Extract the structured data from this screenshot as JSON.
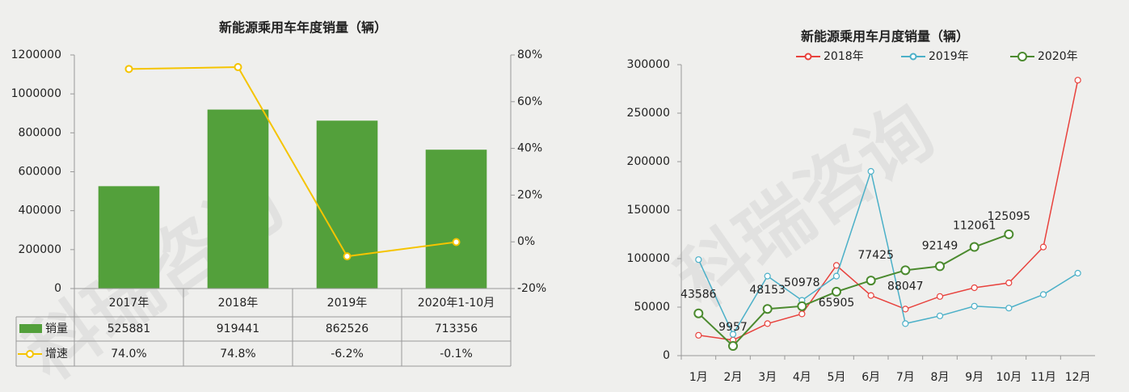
{
  "watermark": "科瑞咨询",
  "chart_data": [
    {
      "type": "bar",
      "title": "新能源乘用车年度销量（辆）",
      "categories": [
        "2017年",
        "2018年",
        "2019年",
        "2020年1-10月"
      ],
      "series": [
        {
          "name": "销量",
          "color": "#53a03b",
          "values": [
            525881,
            919441,
            862526,
            713356
          ]
        },
        {
          "name": "增速",
          "color": "#f5c400",
          "axis": "y2",
          "type": "line",
          "values": [
            74.0,
            74.8,
            -6.2,
            -0.1
          ],
          "value_labels": [
            "74.0%",
            "74.8%",
            "-6.2%",
            "-0.1%"
          ]
        }
      ],
      "ylim": [
        0,
        1200000
      ],
      "yticks": [
        0,
        200000,
        400000,
        600000,
        800000,
        1000000,
        1200000
      ],
      "y2lim": [
        -20,
        80
      ],
      "y2ticks": [
        {
          "value": -20,
          "label": "-20%"
        },
        {
          "value": 0,
          "label": "0%"
        },
        {
          "value": 20,
          "label": "20%"
        },
        {
          "value": 40,
          "label": "40%"
        },
        {
          "value": 60,
          "label": "60%"
        },
        {
          "value": 80,
          "label": "80%"
        }
      ]
    },
    {
      "type": "line",
      "title": "新能源乘用车月度销量（辆）",
      "categories": [
        "1月",
        "2月",
        "3月",
        "4月",
        "5月",
        "6月",
        "7月",
        "8月",
        "9月",
        "10月",
        "11月",
        "12月"
      ],
      "series": [
        {
          "name": "2018年",
          "color": "#e8423d",
          "values": [
            21000,
            16000,
            33000,
            43000,
            93000,
            62000,
            48000,
            61000,
            70000,
            75000,
            112000,
            284000
          ]
        },
        {
          "name": "2019年",
          "color": "#4bb0c8",
          "values": [
            99000,
            22000,
            82000,
            57000,
            82000,
            190000,
            33000,
            41000,
            51000,
            49000,
            63000,
            85000
          ]
        },
        {
          "name": "2020年",
          "color": "#4b8a2e",
          "values": [
            43586,
            9957,
            48153,
            50978,
            65905,
            77425,
            88047,
            92149,
            112061,
            125095,
            null,
            null
          ]
        }
      ],
      "ylim": [
        0,
        300000
      ],
      "yticks": [
        0,
        50000,
        100000,
        150000,
        200000,
        250000,
        300000
      ],
      "legend": "top"
    }
  ]
}
